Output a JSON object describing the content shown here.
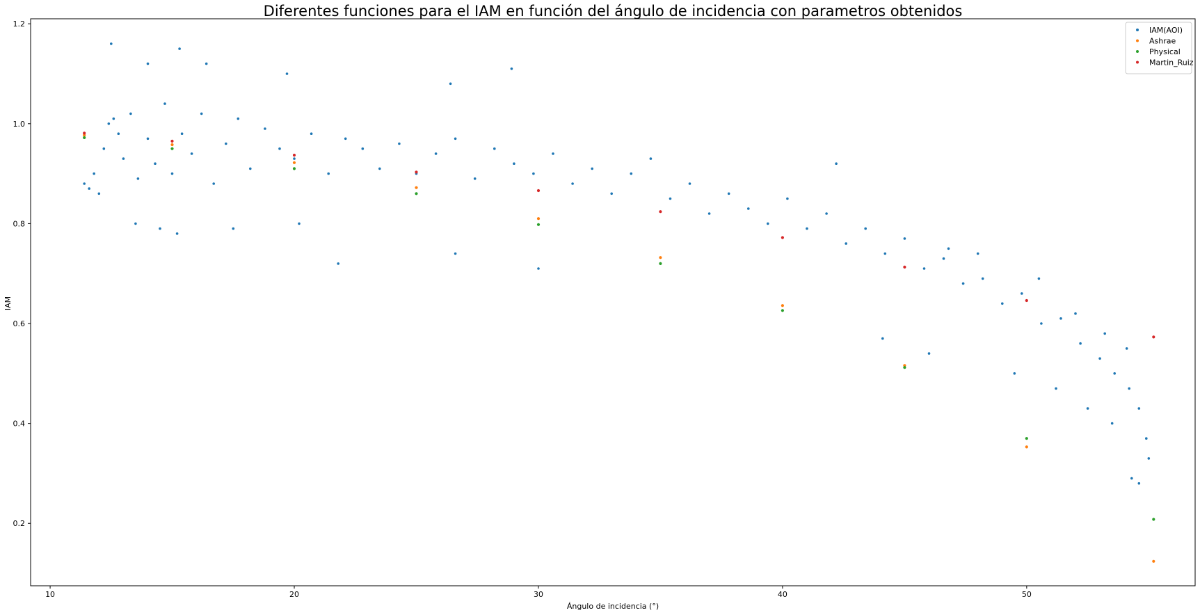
{
  "chart_data": {
    "type": "scatter",
    "title": "Diferentes funciones para el IAM en función del ángulo de incidencia con parametros obtenidos",
    "xlabel": "Ángulo de incidencia (°)",
    "ylabel": "IAM",
    "xlim": [
      9.2,
      56.9
    ],
    "ylim": [
      0.075,
      1.21
    ],
    "xticks": [
      10,
      20,
      30,
      40,
      50
    ],
    "yticks": [
      0.2,
      0.4,
      0.6,
      0.8,
      1.0,
      1.2
    ],
    "xtick_labels": [
      "10",
      "20",
      "30",
      "40",
      "50"
    ],
    "ytick_labels": [
      "0.2",
      "0.4",
      "0.6",
      "0.8",
      "1.0",
      "1.2"
    ],
    "grid": false,
    "legend_position": "top-right",
    "series": [
      {
        "name": "IAM(AOI)",
        "color": "#1f77b4",
        "points": [
          [
            11.4,
            0.88
          ],
          [
            11.6,
            0.87
          ],
          [
            11.8,
            0.9
          ],
          [
            12.0,
            0.86
          ],
          [
            12.2,
            0.95
          ],
          [
            12.4,
            1.0
          ],
          [
            12.6,
            1.01
          ],
          [
            12.8,
            0.98
          ],
          [
            13.0,
            0.93
          ],
          [
            13.3,
            1.02
          ],
          [
            13.6,
            0.89
          ],
          [
            14.0,
            0.97
          ],
          [
            14.3,
            0.92
          ],
          [
            14.7,
            1.04
          ],
          [
            15.0,
            0.9
          ],
          [
            15.4,
            0.98
          ],
          [
            15.8,
            0.94
          ],
          [
            16.2,
            1.02
          ],
          [
            16.7,
            0.88
          ],
          [
            17.2,
            0.96
          ],
          [
            17.7,
            1.01
          ],
          [
            18.2,
            0.91
          ],
          [
            18.8,
            0.99
          ],
          [
            19.4,
            0.95
          ],
          [
            20.0,
            0.93
          ],
          [
            20.7,
            0.98
          ],
          [
            21.4,
            0.9
          ],
          [
            22.1,
            0.97
          ],
          [
            22.8,
            0.95
          ],
          [
            23.5,
            0.91
          ],
          [
            24.3,
            0.96
          ],
          [
            25.0,
            0.9
          ],
          [
            25.8,
            0.94
          ],
          [
            26.6,
            0.97
          ],
          [
            27.4,
            0.89
          ],
          [
            28.2,
            0.95
          ],
          [
            29.0,
            0.92
          ],
          [
            29.8,
            0.9
          ],
          [
            30.6,
            0.94
          ],
          [
            31.4,
            0.88
          ],
          [
            32.2,
            0.91
          ],
          [
            33.0,
            0.86
          ],
          [
            33.8,
            0.9
          ],
          [
            34.6,
            0.93
          ],
          [
            35.4,
            0.85
          ],
          [
            36.2,
            0.88
          ],
          [
            37.0,
            0.82
          ],
          [
            37.8,
            0.86
          ],
          [
            38.6,
            0.83
          ],
          [
            39.4,
            0.8
          ],
          [
            40.2,
            0.85
          ],
          [
            41.0,
            0.79
          ],
          [
            41.8,
            0.82
          ],
          [
            42.6,
            0.76
          ],
          [
            43.4,
            0.79
          ],
          [
            44.2,
            0.74
          ],
          [
            45.0,
            0.77
          ],
          [
            45.8,
            0.71
          ],
          [
            46.6,
            0.73
          ],
          [
            47.4,
            0.68
          ],
          [
            48.2,
            0.69
          ],
          [
            49.0,
            0.64
          ],
          [
            49.8,
            0.66
          ],
          [
            50.6,
            0.6
          ],
          [
            51.4,
            0.61
          ],
          [
            52.2,
            0.56
          ],
          [
            53.0,
            0.53
          ],
          [
            53.6,
            0.5
          ],
          [
            54.2,
            0.47
          ],
          [
            54.6,
            0.43
          ],
          [
            54.9,
            0.37
          ],
          [
            55.0,
            0.33
          ],
          [
            13.5,
            0.8
          ],
          [
            14.5,
            0.79
          ],
          [
            15.2,
            0.78
          ],
          [
            17.5,
            0.79
          ],
          [
            20.2,
            0.8
          ],
          [
            21.8,
            0.72
          ],
          [
            26.6,
            0.74
          ],
          [
            30.0,
            0.71
          ],
          [
            12.5,
            1.16
          ],
          [
            15.3,
            1.15
          ],
          [
            19.7,
            1.1
          ],
          [
            28.9,
            1.11
          ],
          [
            14.0,
            1.12
          ],
          [
            16.4,
            1.12
          ],
          [
            26.4,
            1.08
          ],
          [
            42.2,
            0.92
          ],
          [
            44.1,
            0.57
          ],
          [
            46.0,
            0.54
          ],
          [
            49.5,
            0.5
          ],
          [
            51.2,
            0.47
          ],
          [
            52.5,
            0.43
          ],
          [
            53.5,
            0.4
          ],
          [
            54.6,
            0.28
          ],
          [
            54.3,
            0.29
          ],
          [
            54.1,
            0.55
          ],
          [
            53.2,
            0.58
          ],
          [
            52.0,
            0.62
          ],
          [
            50.5,
            0.69
          ],
          [
            48.0,
            0.74
          ],
          [
            46.8,
            0.75
          ]
        ]
      },
      {
        "name": "Ashrae",
        "color": "#ff7f0e",
        "points": [
          [
            11.4,
            0.977
          ],
          [
            15,
            0.958
          ],
          [
            20,
            0.922
          ],
          [
            25,
            0.872
          ],
          [
            30,
            0.81
          ],
          [
            35,
            0.732
          ],
          [
            40,
            0.636
          ],
          [
            45,
            0.516
          ],
          [
            50,
            0.353
          ],
          [
            55.2,
            0.124
          ]
        ]
      },
      {
        "name": "Physical",
        "color": "#2ca02c",
        "points": [
          [
            11.4,
            0.972
          ],
          [
            15,
            0.95
          ],
          [
            20,
            0.91
          ],
          [
            25,
            0.86
          ],
          [
            30,
            0.798
          ],
          [
            35,
            0.72
          ],
          [
            40,
            0.626
          ],
          [
            45,
            0.512
          ],
          [
            50,
            0.37
          ],
          [
            55.2,
            0.208
          ]
        ]
      },
      {
        "name": "Martin_Ruiz",
        "color": "#d62728",
        "points": [
          [
            11.4,
            0.981
          ],
          [
            15,
            0.965
          ],
          [
            20,
            0.937
          ],
          [
            25,
            0.903
          ],
          [
            30,
            0.866
          ],
          [
            35,
            0.824
          ],
          [
            40,
            0.772
          ],
          [
            45,
            0.713
          ],
          [
            50,
            0.646
          ],
          [
            55.2,
            0.573
          ]
        ]
      }
    ]
  }
}
